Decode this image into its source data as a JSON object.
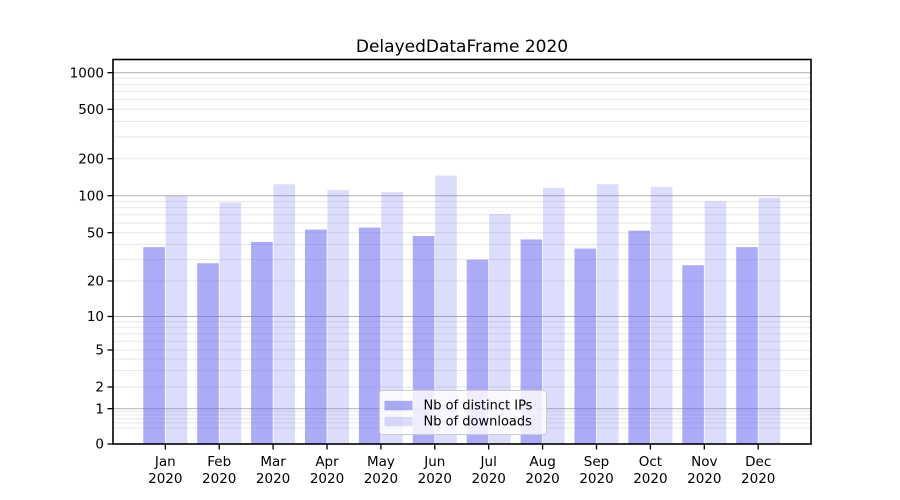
{
  "chart_data": {
    "type": "bar",
    "title": "DelayedDataFrame 2020",
    "categories": [
      "Jan 2020",
      "Feb 2020",
      "Mar 2020",
      "Apr 2020",
      "May 2020",
      "Jun 2020",
      "Jul 2020",
      "Aug 2020",
      "Sep 2020",
      "Oct 2020",
      "Nov 2020",
      "Dec 2020"
    ],
    "series": [
      {
        "name": "Nb of distinct IPs",
        "color": "rgba(102,102,240,0.55)",
        "values": [
          38,
          28,
          42,
          53,
          55,
          47,
          30,
          44,
          37,
          52,
          27,
          38
        ]
      },
      {
        "name": "Nb of downloads",
        "color": "rgba(102,102,240,0.23)",
        "values": [
          99,
          88,
          124,
          111,
          107,
          146,
          71,
          116,
          124,
          118,
          90,
          96
        ]
      }
    ],
    "xlabel": "",
    "ylabel": "",
    "yscale": "symlog",
    "yticks": [
      0,
      1,
      2,
      5,
      10,
      20,
      50,
      100,
      200,
      500,
      1000
    ],
    "ylim": [
      0,
      1300
    ],
    "grid": "horizontal major and minor gridlines on",
    "legend_position": "lower center",
    "colors": {
      "major_grid": "#b0b0b0",
      "minor_grid": "#e7e7e7",
      "axis": "#000000",
      "legend_border": "#cccccc",
      "legend_background": "rgba(255,255,255,0.8)"
    }
  }
}
